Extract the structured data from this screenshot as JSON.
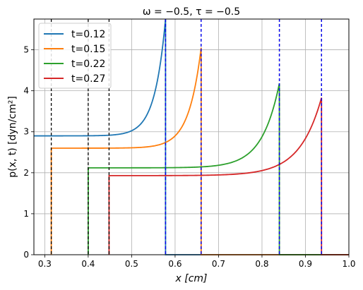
{
  "chart_data": {
    "type": "line",
    "title": "ω = −0.5,  τ = −0.5",
    "xlabel": "x [cm]",
    "ylabel": "p(x, t)  [dyn/cm²]",
    "xlim": [
      0.275,
      1.0
    ],
    "ylim": [
      0,
      5.75
    ],
    "xticks": [
      "0.3",
      "0.4",
      "0.5",
      "0.6",
      "0.7",
      "0.8",
      "0.9",
      "1.0"
    ],
    "yticks": [
      "0",
      "1",
      "2",
      "3",
      "4",
      "5"
    ],
    "grid": true,
    "legend_position": "top-left",
    "series": [
      {
        "name": "t=0.12",
        "color": "#1f77b4",
        "x_start": 0.275,
        "x_end": 0.578,
        "base": 2.9,
        "end": 5.75,
        "rate": 40,
        "left_boundary": null
      },
      {
        "name": "t=0.15",
        "color": "#ff7f0e",
        "x_start": 0.315,
        "x_end": 0.66,
        "base": 2.6,
        "end": 5.05,
        "rate": 35,
        "left_boundary": 0.315
      },
      {
        "name": "t=0.22",
        "color": "#2ca02c",
        "x_start": 0.4,
        "x_end": 0.84,
        "base": 2.12,
        "end": 4.18,
        "rate": 25,
        "left_boundary": 0.4
      },
      {
        "name": "t=0.27",
        "color": "#d62728",
        "x_start": 0.448,
        "x_end": 0.937,
        "base": 1.93,
        "end": 3.83,
        "rate": 20,
        "left_boundary": 0.448
      }
    ],
    "black_dashed_lines": [
      0.315,
      0.4,
      0.448,
      0.578,
      0.66,
      0.84,
      0.937
    ],
    "blue_dashed_lines": [
      0.578,
      0.66,
      0.84,
      0.937
    ]
  }
}
